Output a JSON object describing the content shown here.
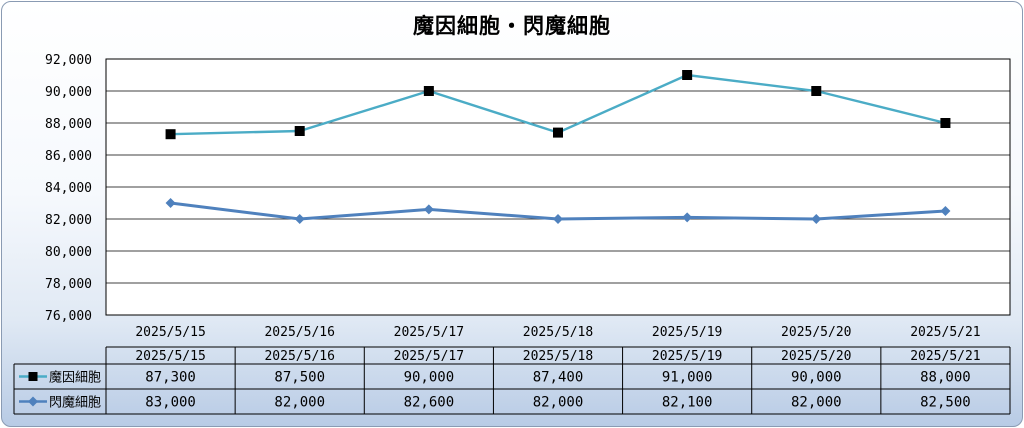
{
  "chart_data": {
    "type": "line",
    "title": "魔因細胞・閃魔細胞",
    "categories": [
      "2025/5/15",
      "2025/5/16",
      "2025/5/17",
      "2025/5/18",
      "2025/5/19",
      "2025/5/20",
      "2025/5/21"
    ],
    "ylim": [
      76000,
      92000
    ],
    "yticks": [
      "92,000",
      "90,000",
      "88,000",
      "86,000",
      "84,000",
      "82,000",
      "80,000",
      "78,000",
      "76,000"
    ],
    "grid": true,
    "legend": "data-table",
    "series": [
      {
        "name": "魔因細胞",
        "values": [
          87300,
          87500,
          90000,
          87400,
          91000,
          90000,
          88000
        ],
        "labels": [
          "87,300",
          "87,500",
          "90,000",
          "87,400",
          "91,000",
          "90,000",
          "88,000"
        ],
        "color": "#4bacc6",
        "marker": "square",
        "marker_color": "#000000"
      },
      {
        "name": "閃魔細胞",
        "values": [
          83000,
          82000,
          82600,
          82000,
          82100,
          82000,
          82500
        ],
        "labels": [
          "83,000",
          "82,000",
          "82,600",
          "82,000",
          "82,100",
          "82,000",
          "82,500"
        ],
        "color": "#4f81bd",
        "marker": "diamond",
        "marker_color": "#4f81bd"
      }
    ]
  }
}
